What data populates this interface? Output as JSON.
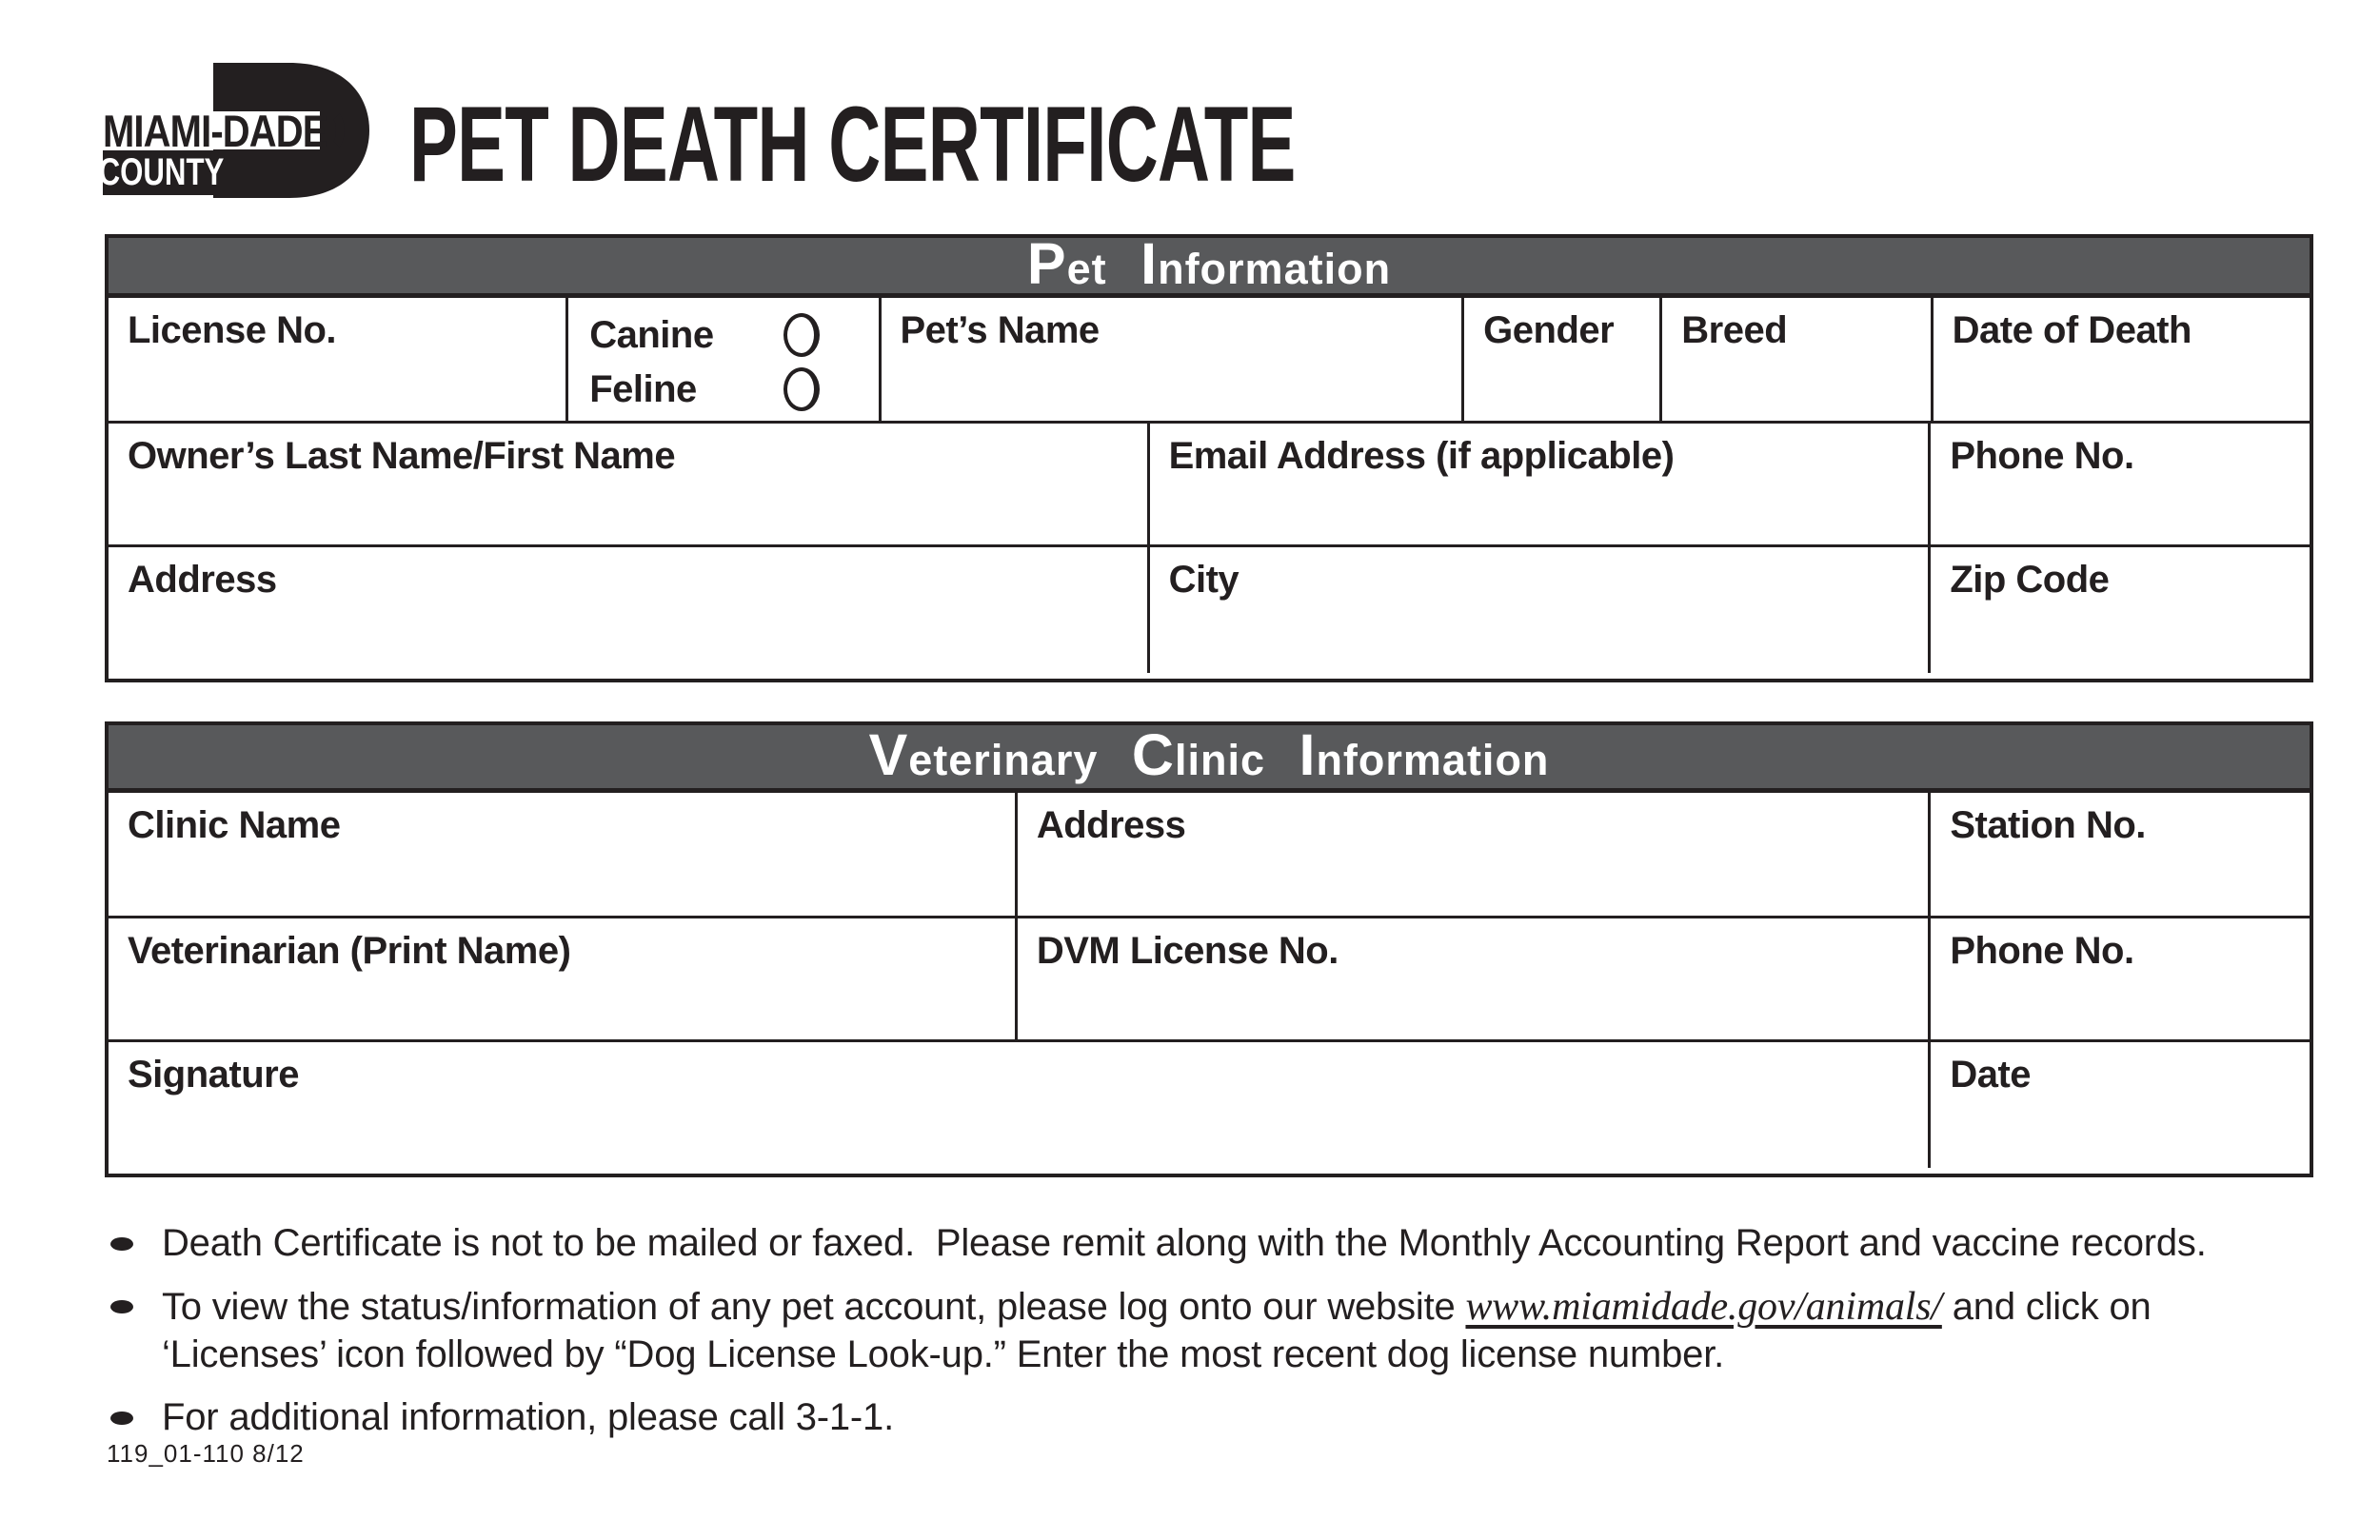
{
  "title": "PET DEATH CERTIFICATE",
  "logo": {
    "county_name": "MIAMI-DADE",
    "county_word": "COUNTY"
  },
  "colors": {
    "header_bar": "#58595b",
    "ink": "#231f20"
  },
  "pet_section": {
    "title": "Pet Information",
    "fields": {
      "license_no": "License No.",
      "canine": "Canine",
      "feline": "Feline",
      "pets_name": "Pet’s Name",
      "gender": "Gender",
      "breed": "Breed",
      "date_of_death": "Date of Death",
      "owner_name": "Owner’s Last Name/First Name",
      "email": "Email Address (if applicable)",
      "phone": "Phone No.",
      "address": "Address",
      "city": "City",
      "zip_code": "Zip Code"
    }
  },
  "vet_section": {
    "title": "Veterinary Clinic Information",
    "fields": {
      "clinic_name": "Clinic Name",
      "address": "Address",
      "station_no": "Station No.",
      "veterinarian": "Veterinarian (Print Name)",
      "dvm_license_no": "DVM License No.",
      "phone": "Phone No.",
      "signature": "Signature",
      "date": "Date"
    }
  },
  "notes": {
    "bullet1": "Death Certificate is not to be mailed or faxed.  Please remit along with the Monthly Accounting Report and vaccine records.",
    "bullet2_pre": "To view the status/information of any pet account, please log onto our website ",
    "bullet2_link": "www.miamidade.gov/animals/",
    "bullet2_post": " and click on\n‘Licenses’ icon followed by “Dog License Look-up.” Enter the most recent dog license number.",
    "bullet3": "For additional information, please call 3-1-1."
  },
  "form_number": "119_01-110 8/12"
}
